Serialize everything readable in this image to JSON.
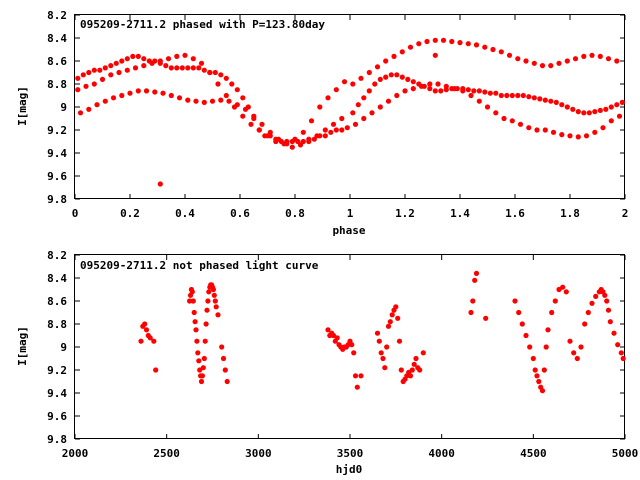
{
  "chart_data": [
    {
      "type": "scatter",
      "title": "095209-2711.2 phased with P=123.80day",
      "xlabel": "phase",
      "ylabel": "I[mag]",
      "xlim": [
        0,
        2
      ],
      "ylim": [
        8.2,
        9.8
      ],
      "y_inverted": true,
      "xticks": [
        "0",
        "0.2",
        "0.4",
        "0.6",
        "0.8",
        "1",
        "1.2",
        "1.4",
        "1.6",
        "1.8",
        "2"
      ],
      "yticks": [
        "8.2",
        "8.4",
        "8.6",
        "8.8",
        "9",
        "9.2",
        "9.4",
        "9.6",
        "9.8"
      ],
      "marker_color": "#ff0000",
      "series": [
        {
          "x": [
            0.01,
            0.03,
            0.05,
            0.07,
            0.09,
            0.11,
            0.13,
            0.15,
            0.17,
            0.19,
            0.21,
            0.23,
            0.25,
            0.27,
            0.29,
            0.31,
            0.33,
            0.35,
            0.37,
            0.39,
            0.41,
            0.43,
            0.45,
            0.47,
            0.49,
            0.51,
            0.53,
            0.55,
            0.57,
            0.59,
            0.61,
            0.63,
            0.65,
            0.67,
            0.69,
            0.71,
            0.73,
            0.75,
            0.77,
            0.79,
            0.81,
            0.83,
            0.85,
            0.87,
            0.89,
            0.91,
            0.93,
            0.95,
            0.97,
            0.99,
            0.01,
            0.04,
            0.07,
            0.1,
            0.13,
            0.16,
            0.19,
            0.22,
            0.25,
            0.28,
            0.31,
            0.34,
            0.37,
            0.4,
            0.43,
            0.46,
            0.49,
            0.52,
            0.55,
            0.58,
            0.61,
            0.64,
            0.67,
            0.7,
            0.73,
            0.76,
            0.79,
            0.82,
            0.85,
            0.88,
            0.91,
            0.94,
            0.97,
            0.02,
            0.05,
            0.08,
            0.11,
            0.14,
            0.17,
            0.2,
            0.23,
            0.26,
            0.29,
            0.32,
            0.35,
            0.38,
            0.41,
            0.44,
            0.47,
            0.5,
            0.53,
            0.56,
            0.59,
            0.62,
            0.65,
            0.68,
            0.71,
            0.74,
            0.77,
            0.8,
            0.83,
            0.86,
            0.89,
            0.92,
            0.95,
            0.98,
            1.01,
            1.03,
            1.05,
            1.07,
            1.09,
            1.11,
            1.13,
            1.15,
            1.17,
            1.19,
            1.21,
            1.23,
            1.25,
            1.27,
            1.29,
            1.31,
            1.33,
            1.35,
            1.37,
            1.39,
            1.41,
            1.43,
            1.45,
            1.47,
            1.49,
            1.51,
            1.53,
            1.55,
            1.57,
            1.59,
            1.61,
            1.63,
            1.65,
            1.67,
            1.69,
            1.71,
            1.73,
            1.75,
            1.77,
            1.79,
            1.81,
            1.83,
            1.85,
            1.87,
            1.89,
            1.91,
            1.93,
            1.95,
            1.97,
            1.99,
            1.01,
            1.04,
            1.07,
            1.1,
            1.13,
            1.16,
            1.19,
            1.22,
            1.25,
            1.28,
            1.31,
            1.34,
            1.37,
            1.4,
            1.43,
            1.46,
            1.49,
            1.52,
            1.55,
            1.58,
            1.61,
            1.64,
            1.67,
            1.7,
            1.73,
            1.76,
            1.79,
            1.82,
            1.85,
            1.88,
            1.91,
            1.94,
            1.97,
            1.02,
            1.05,
            1.08,
            1.11,
            1.14,
            1.17,
            1.2,
            1.23,
            1.26,
            1.29,
            1.32,
            1.35,
            1.38,
            1.41,
            1.44,
            1.47,
            1.5,
            1.53,
            1.56,
            1.59,
            1.62,
            1.65,
            1.68,
            1.71,
            1.74,
            1.77,
            1.8,
            1.83,
            1.86,
            1.89,
            1.92,
            1.95,
            1.98,
            0.31,
            1.31
          ],
          "y": [
            8.75,
            8.72,
            8.7,
            8.68,
            8.68,
            8.66,
            8.64,
            8.62,
            8.6,
            8.58,
            8.56,
            8.56,
            8.58,
            8.6,
            8.6,
            8.62,
            8.64,
            8.66,
            8.66,
            8.66,
            8.66,
            8.66,
            8.66,
            8.68,
            8.7,
            8.7,
            8.72,
            8.75,
            8.8,
            8.85,
            8.92,
            9.0,
            9.1,
            9.2,
            9.25,
            9.25,
            9.28,
            9.3,
            9.32,
            9.3,
            9.3,
            9.3,
            9.28,
            9.28,
            9.25,
            9.25,
            9.22,
            9.2,
            9.2,
            9.18,
            8.85,
            8.82,
            8.8,
            8.76,
            8.72,
            8.7,
            8.68,
            8.66,
            8.64,
            8.62,
            8.6,
            8.58,
            8.56,
            8.55,
            8.58,
            8.62,
            8.7,
            8.8,
            8.9,
            9.0,
            9.08,
            9.15,
            9.2,
            9.25,
            9.3,
            9.32,
            9.35,
            9.33,
            9.3,
            9.25,
            9.2,
            9.15,
            9.1,
            9.05,
            9.02,
            8.98,
            8.95,
            8.92,
            8.9,
            8.88,
            8.86,
            8.86,
            8.87,
            8.88,
            8.9,
            8.92,
            8.94,
            8.95,
            8.96,
            8.95,
            8.94,
            8.95,
            8.98,
            9.02,
            9.08,
            9.15,
            9.22,
            9.28,
            9.3,
            9.28,
            9.22,
            9.12,
            9.0,
            8.92,
            8.85,
            8.78,
            9.05,
            8.98,
            8.92,
            8.86,
            8.8,
            8.76,
            8.74,
            8.72,
            8.72,
            8.74,
            8.76,
            8.78,
            8.8,
            8.82,
            8.84,
            8.86,
            8.86,
            8.85,
            8.84,
            8.84,
            8.84,
            8.85,
            8.86,
            8.86,
            8.87,
            8.88,
            8.88,
            8.9,
            8.9,
            8.9,
            8.9,
            8.9,
            8.91,
            8.92,
            8.93,
            8.94,
            8.95,
            8.96,
            8.98,
            9.0,
            9.02,
            9.04,
            9.05,
            9.05,
            9.04,
            9.03,
            9.02,
            9.0,
            8.98,
            8.96,
            8.8,
            8.75,
            8.7,
            8.65,
            8.6,
            8.56,
            8.52,
            8.48,
            8.45,
            8.43,
            8.42,
            8.42,
            8.43,
            8.44,
            8.45,
            8.46,
            8.48,
            8.5,
            8.52,
            8.55,
            8.58,
            8.6,
            8.62,
            8.64,
            8.64,
            8.62,
            8.6,
            8.58,
            8.56,
            8.55,
            8.56,
            8.58,
            8.6,
            9.15,
            9.1,
            9.05,
            9.0,
            8.95,
            8.9,
            8.86,
            8.84,
            8.82,
            8.8,
            8.8,
            8.82,
            8.84,
            8.86,
            8.9,
            8.95,
            9.0,
            9.05,
            9.1,
            9.12,
            9.15,
            9.18,
            9.2,
            9.2,
            9.22,
            9.24,
            9.25,
            9.26,
            9.25,
            9.22,
            9.18,
            9.12,
            9.08,
            9.67,
            8.55
          ]
        }
      ]
    },
    {
      "type": "scatter",
      "title": "095209-2711.2 not phased light curve",
      "xlabel": "hjd0",
      "ylabel": "I[mag]",
      "xlim": [
        2000,
        5000
      ],
      "ylim": [
        8.2,
        9.8
      ],
      "y_inverted": true,
      "xticks": [
        "2000",
        "2500",
        "3000",
        "3500",
        "4000",
        "4500",
        "5000"
      ],
      "yticks": [
        "8.2",
        "8.4",
        "8.6",
        "8.8",
        "9",
        "9.2",
        "9.4",
        "9.6",
        "9.8"
      ],
      "marker_color": "#ff0000",
      "series": [
        {
          "x": [
            2360,
            2370,
            2380,
            2390,
            2400,
            2410,
            2430,
            2440,
            2625,
            2630,
            2635,
            2640,
            2645,
            2650,
            2655,
            2660,
            2665,
            2670,
            2675,
            2680,
            2685,
            2690,
            2695,
            2700,
            2705,
            2710,
            2715,
            2720,
            2725,
            2730,
            2735,
            2740,
            2745,
            2750,
            2755,
            2760,
            2765,
            2770,
            2780,
            2800,
            2810,
            2820,
            2830,
            3380,
            3390,
            3400,
            3410,
            3420,
            3430,
            3440,
            3450,
            3460,
            3470,
            3480,
            3490,
            3500,
            3510,
            3520,
            3530,
            3540,
            3560,
            3650,
            3660,
            3670,
            3680,
            3690,
            3700,
            3710,
            3720,
            3730,
            3740,
            3750,
            3760,
            3770,
            3780,
            3790,
            3800,
            3810,
            3820,
            3830,
            3840,
            3850,
            3860,
            3870,
            3880,
            3900,
            4160,
            4170,
            4180,
            4190,
            4240,
            4400,
            4420,
            4440,
            4460,
            4480,
            4500,
            4510,
            4520,
            4530,
            4540,
            4550,
            4560,
            4570,
            4580,
            4600,
            4620,
            4640,
            4660,
            4680,
            4700,
            4720,
            4740,
            4760,
            4780,
            4800,
            4820,
            4840,
            4860,
            4870,
            4880,
            4890,
            4900,
            4910,
            4920,
            4940,
            4960,
            4980,
            4990
          ],
          "y": [
            8.95,
            8.82,
            8.8,
            8.85,
            8.9,
            8.92,
            8.95,
            9.2,
            8.6,
            8.55,
            8.5,
            8.52,
            8.6,
            8.7,
            8.78,
            8.85,
            8.95,
            9.05,
            9.12,
            9.2,
            9.25,
            9.3,
            9.25,
            9.18,
            9.1,
            8.95,
            8.8,
            8.68,
            8.6,
            8.52,
            8.48,
            8.46,
            8.46,
            8.48,
            8.5,
            8.55,
            8.6,
            8.65,
            8.72,
            9.0,
            9.1,
            9.2,
            9.3,
            8.85,
            8.9,
            8.88,
            8.9,
            8.95,
            8.92,
            8.98,
            9.0,
            9.02,
            9.0,
            9.0,
            8.98,
            8.95,
            8.98,
            9.05,
            9.25,
            9.35,
            9.25,
            8.88,
            8.95,
            9.05,
            9.1,
            9.18,
            9.0,
            8.82,
            8.78,
            8.72,
            8.68,
            8.65,
            8.75,
            8.95,
            9.2,
            9.3,
            9.28,
            9.25,
            9.22,
            9.25,
            9.2,
            9.15,
            9.1,
            9.18,
            9.2,
            9.05,
            8.7,
            8.6,
            8.42,
            8.36,
            8.75,
            8.6,
            8.7,
            8.8,
            8.9,
            9.0,
            9.1,
            9.2,
            9.25,
            9.3,
            9.35,
            9.38,
            9.2,
            9.0,
            8.85,
            8.7,
            8.6,
            8.5,
            8.48,
            8.52,
            8.95,
            9.05,
            9.1,
            9.0,
            8.8,
            8.7,
            8.62,
            8.56,
            8.52,
            8.5,
            8.52,
            8.55,
            8.6,
            8.68,
            8.78,
            8.88,
            8.98,
            9.05,
            9.1
          ]
        }
      ]
    }
  ]
}
